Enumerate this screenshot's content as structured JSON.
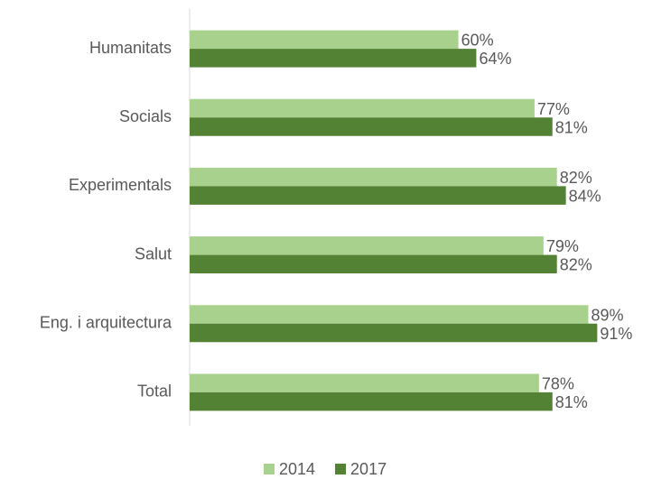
{
  "chart_data": {
    "type": "bar",
    "orientation": "horizontal",
    "categories": [
      "Humanitats",
      "Socials",
      "Experimentals",
      "Salut",
      "Eng. i arquitectura",
      "Total"
    ],
    "series": [
      {
        "name": "2014",
        "color": "#a9d18e",
        "values": [
          60,
          77,
          82,
          79,
          89,
          78
        ],
        "value_labels": [
          "60%",
          "77%",
          "82%",
          "79%",
          "89%",
          "78%"
        ]
      },
      {
        "name": "2017",
        "color": "#548235",
        "values": [
          64,
          81,
          84,
          82,
          91,
          81
        ],
        "value_labels": [
          "64%",
          "81%",
          "84%",
          "82%",
          "91%",
          "81%"
        ]
      }
    ],
    "xlim": [
      0,
      100
    ],
    "legend": "bottom"
  }
}
